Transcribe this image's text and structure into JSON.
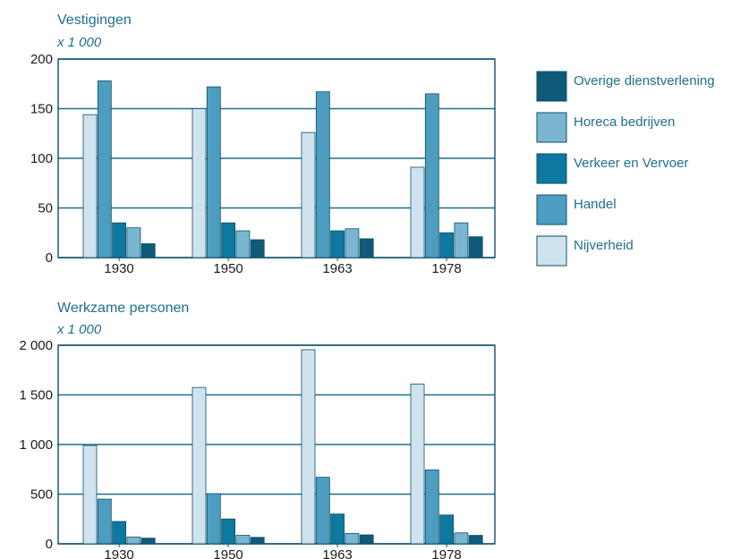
{
  "colors": {
    "grid": "#1f6f8b",
    "frame": "#0d4e66",
    "bar_stroke": "#0d4e66",
    "text_title": "#1f6f8b",
    "text_tick": "#1a1a1a"
  },
  "legend": {
    "items": [
      {
        "label": "Overige dienstverlening",
        "color": "#0e5a78"
      },
      {
        "label": "Horeca bedrijven",
        "color": "#7ab6d2"
      },
      {
        "label": "Verkeer en Vervoer",
        "color": "#0d78a0"
      },
      {
        "label": "Handel",
        "color": "#4d9dc0"
      },
      {
        "label": "Nijverheid",
        "color": "#cfe3ef"
      }
    ]
  },
  "chart_data": [
    {
      "type": "bar",
      "title": "Vestigingen",
      "unit": "x 1 000",
      "categories": [
        "1930",
        "1950",
        "1963",
        "1978"
      ],
      "ylim": [
        0,
        200
      ],
      "yticks": [
        0,
        50,
        100,
        150,
        200
      ],
      "ytick_labels": [
        "0",
        "50",
        "100",
        "150",
        "200"
      ],
      "grid": true,
      "series": [
        {
          "name": "Nijverheid",
          "color": "#cfe3ef",
          "values": [
            144,
            150,
            126,
            91
          ]
        },
        {
          "name": "Handel",
          "color": "#4d9dc0",
          "values": [
            178,
            172,
            167,
            165
          ]
        },
        {
          "name": "Verkeer en Vervoer",
          "color": "#0d78a0",
          "values": [
            35,
            35,
            27,
            25
          ]
        },
        {
          "name": "Horeca bedrijven",
          "color": "#7ab6d2",
          "values": [
            30,
            27,
            29,
            35
          ]
        },
        {
          "name": "Overige dienstverlening",
          "color": "#0e5a78",
          "values": [
            14,
            18,
            19,
            21
          ]
        }
      ]
    },
    {
      "type": "bar",
      "title": "Werkzame personen",
      "unit": "x 1 000",
      "categories": [
        "1930",
        "1950",
        "1963",
        "1978"
      ],
      "ylim": [
        0,
        2000
      ],
      "yticks": [
        0,
        500,
        1000,
        1500,
        2000
      ],
      "ytick_labels": [
        "0",
        "500",
        "1 000",
        "1 500",
        "2 000"
      ],
      "grid": true,
      "series": [
        {
          "name": "Nijverheid",
          "color": "#cfe3ef",
          "values": [
            990,
            1575,
            1955,
            1610
          ]
        },
        {
          "name": "Handel",
          "color": "#4d9dc0",
          "values": [
            450,
            505,
            670,
            745
          ]
        },
        {
          "name": "Verkeer en Vervoer",
          "color": "#0d78a0",
          "values": [
            225,
            250,
            300,
            290
          ]
        },
        {
          "name": "Horeca bedrijven",
          "color": "#7ab6d2",
          "values": [
            68,
            85,
            105,
            110
          ]
        },
        {
          "name": "Overige dienstverlening",
          "color": "#0e5a78",
          "values": [
            57,
            65,
            90,
            85
          ]
        }
      ]
    }
  ]
}
